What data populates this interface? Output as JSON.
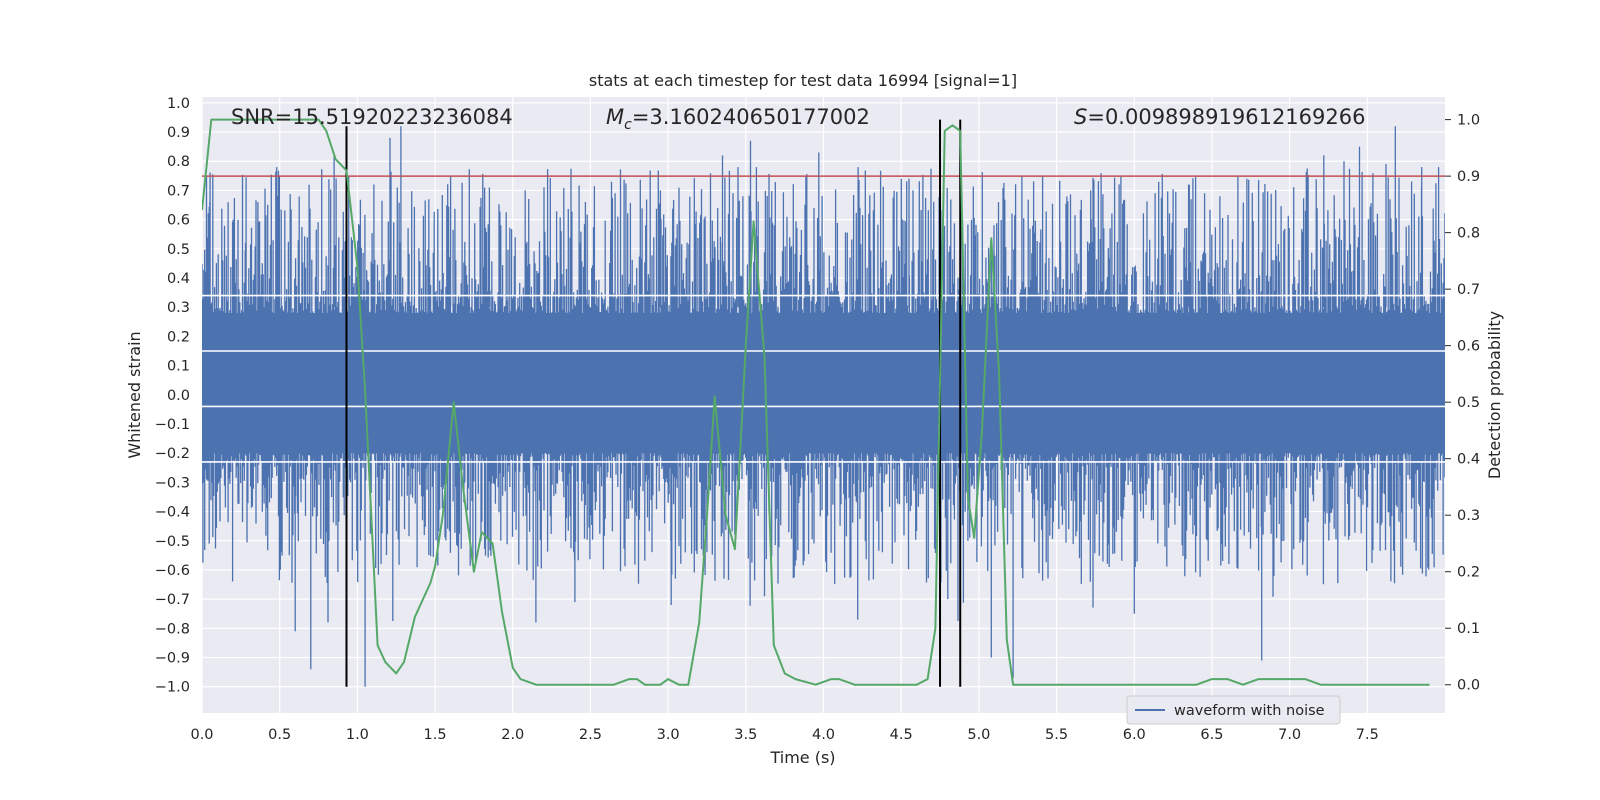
{
  "chart_data": {
    "type": "line",
    "title": "stats at each timestep for test data 16994 [signal=1]",
    "xlabel": "Time (s)",
    "ylabel_left": "Whitened strain",
    "ylabel_right": "Detection probability",
    "xlim": [
      0.0,
      8.0
    ],
    "ylim_left": [
      -1.09,
      1.02
    ],
    "ylim_right": [
      -0.05,
      1.04
    ],
    "x_ticks": [
      "0.0",
      "0.5",
      "1.0",
      "1.5",
      "2.0",
      "2.5",
      "3.0",
      "3.5",
      "4.0",
      "4.5",
      "5.0",
      "5.5",
      "6.0",
      "6.5",
      "7.0",
      "7.5"
    ],
    "y_ticks_left": [
      "1.0",
      "0.9",
      "0.8",
      "0.7",
      "0.6",
      "0.5",
      "0.4",
      "0.3",
      "0.2",
      "0.1",
      "0.0",
      "−0.1",
      "−0.2",
      "−0.3",
      "−0.4",
      "−0.5",
      "−0.6",
      "−0.7",
      "−0.8",
      "−0.9",
      "−1.0"
    ],
    "y_ticks_right": [
      "1.0",
      "0.9",
      "0.8",
      "0.7",
      "0.6",
      "0.5",
      "0.4",
      "0.3",
      "0.2",
      "0.1",
      "0.0"
    ],
    "annotations": {
      "snr": "SNR=15.51920223236084",
      "mc_symbol": "M",
      "mc_sub": "c",
      "mc_value": "=3.160240650177002",
      "s_symbol": "S",
      "s_value": "=0.009898919612169266"
    },
    "legend": [
      "waveform with noise"
    ],
    "threshold_line": {
      "value": 0.9,
      "axis": "right",
      "color": "#c44e52"
    },
    "detection_markers_x": [
      0.93,
      4.75,
      4.88
    ],
    "white_hlines_left": [
      0.34,
      0.15,
      -0.04,
      -0.23
    ],
    "strain_series": {
      "name": "waveform with noise",
      "color": "#4c72b0",
      "core_band": [
        -0.2,
        0.28
      ],
      "envelope_hint": "dense noise, typical range -0.45 to 0.55, spikes to about 0.92 and -1.0",
      "spikes": [
        [
          0.05,
          0.66
        ],
        [
          0.2,
          0.6
        ],
        [
          0.28,
          0.52
        ],
        [
          0.36,
          0.66
        ],
        [
          0.6,
          -0.81
        ],
        [
          0.7,
          -0.94
        ],
        [
          0.85,
          0.82
        ],
        [
          1.05,
          -1.0
        ],
        [
          1.21,
          0.88
        ],
        [
          1.28,
          0.92
        ],
        [
          1.6,
          0.75
        ],
        [
          1.85,
          0.71
        ],
        [
          2.08,
          0.7
        ],
        [
          2.4,
          -0.71
        ],
        [
          2.95,
          0.7
        ],
        [
          3.02,
          -0.72
        ],
        [
          3.35,
          0.82
        ],
        [
          3.45,
          0.78
        ],
        [
          3.53,
          0.87
        ],
        [
          3.62,
          -0.69
        ],
        [
          3.97,
          0.83
        ],
        [
          4.22,
          -0.77
        ],
        [
          4.55,
          0.74
        ],
        [
          4.8,
          -0.7
        ],
        [
          5.08,
          -0.9
        ],
        [
          5.22,
          -0.97
        ],
        [
          5.72,
          0.7
        ],
        [
          6.0,
          -0.75
        ],
        [
          6.35,
          0.72
        ],
        [
          6.82,
          -0.91
        ],
        [
          7.22,
          0.82
        ],
        [
          7.35,
          0.8
        ],
        [
          7.45,
          0.85
        ],
        [
          7.62,
          0.79
        ],
        [
          7.68,
          0.92
        ],
        [
          7.85,
          0.78
        ]
      ]
    },
    "probability_series": {
      "name": "Detection probability",
      "color": "#55a868",
      "axis": "right",
      "x": [
        0.0,
        0.03,
        0.06,
        0.1,
        0.2,
        0.3,
        0.4,
        0.5,
        0.6,
        0.7,
        0.75,
        0.8,
        0.86,
        0.93,
        1.0,
        1.05,
        1.1,
        1.13,
        1.18,
        1.25,
        1.3,
        1.37,
        1.42,
        1.47,
        1.5,
        1.55,
        1.62,
        1.68,
        1.75,
        1.8,
        1.87,
        1.93,
        2.0,
        2.05,
        2.15,
        2.3,
        2.5,
        2.65,
        2.75,
        2.8,
        2.85,
        2.9,
        2.95,
        3.0,
        3.07,
        3.13,
        3.2,
        3.25,
        3.3,
        3.37,
        3.43,
        3.5,
        3.55,
        3.62,
        3.68,
        3.75,
        3.82,
        3.95,
        4.05,
        4.1,
        4.2,
        4.3,
        4.4,
        4.5,
        4.6,
        4.67,
        4.72,
        4.78,
        4.83,
        4.88,
        4.93,
        4.97,
        5.02,
        5.08,
        5.13,
        5.18,
        5.22,
        5.25,
        5.4,
        5.6,
        6.0,
        6.4,
        6.5,
        6.6,
        6.7,
        6.8,
        6.9,
        7.1,
        7.2,
        7.5,
        7.9
      ],
      "values": [
        0.84,
        0.92,
        1.0,
        1.0,
        1.0,
        1.0,
        1.0,
        1.0,
        1.0,
        1.0,
        1.0,
        0.98,
        0.93,
        0.91,
        0.74,
        0.52,
        0.24,
        0.07,
        0.04,
        0.02,
        0.04,
        0.12,
        0.15,
        0.18,
        0.21,
        0.3,
        0.5,
        0.35,
        0.2,
        0.27,
        0.25,
        0.13,
        0.03,
        0.01,
        0.0,
        0.0,
        0.0,
        0.0,
        0.01,
        0.01,
        0.0,
        0.0,
        0.0,
        0.01,
        0.0,
        0.0,
        0.11,
        0.3,
        0.51,
        0.3,
        0.24,
        0.6,
        0.82,
        0.58,
        0.07,
        0.02,
        0.01,
        0.0,
        0.01,
        0.01,
        0.0,
        0.0,
        0.0,
        0.0,
        0.0,
        0.01,
        0.1,
        0.98,
        0.99,
        0.98,
        0.33,
        0.26,
        0.45,
        0.79,
        0.55,
        0.08,
        0.0,
        0.0,
        0.0,
        0.0,
        0.0,
        0.0,
        0.01,
        0.01,
        0.0,
        0.01,
        0.01,
        0.01,
        0.0,
        0.0,
        0.0
      ]
    }
  }
}
